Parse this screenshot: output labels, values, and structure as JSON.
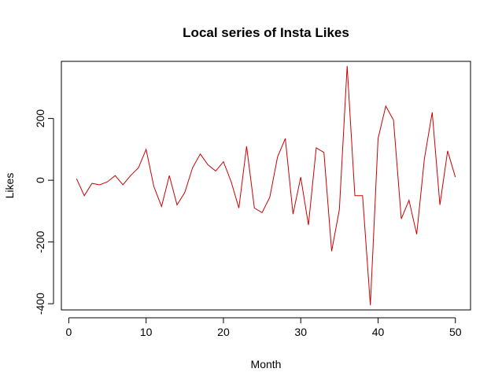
{
  "chart_data": {
    "type": "line",
    "title": "Local series of Insta Likes",
    "xlabel": "Month",
    "ylabel": "Likes",
    "xlim": [
      -0.96,
      51.96
    ],
    "ylim": [
      -420,
      385
    ],
    "x_ticks": [
      0,
      10,
      20,
      30,
      40,
      50
    ],
    "y_ticks": [
      -400,
      -200,
      0,
      200
    ],
    "grid": false,
    "legend": "none",
    "line_color": "#cc0000",
    "series": [
      {
        "x": [
          1,
          2,
          3,
          4,
          5,
          6,
          7,
          8,
          9,
          10,
          11,
          12,
          13,
          14,
          15,
          16,
          17,
          18,
          19,
          20,
          21,
          22,
          23,
          24,
          25,
          26,
          27,
          28,
          29,
          30,
          31,
          32,
          33,
          34,
          35,
          36,
          37,
          38,
          39,
          40,
          41,
          42,
          43,
          44,
          45,
          46,
          47,
          48,
          49,
          50
        ],
        "values": [
          5,
          -50,
          -10,
          -15,
          -5,
          15,
          -15,
          15,
          40,
          100,
          -20,
          -85,
          15,
          -80,
          -40,
          40,
          85,
          50,
          30,
          60,
          -5,
          -90,
          110,
          -90,
          -105,
          -55,
          75,
          135,
          -110,
          10,
          -145,
          105,
          90,
          -230,
          -95,
          370,
          -50,
          -50,
          -405,
          135,
          240,
          195,
          -125,
          -65,
          -175,
          70,
          220,
          -80,
          95,
          10
        ]
      }
    ]
  }
}
